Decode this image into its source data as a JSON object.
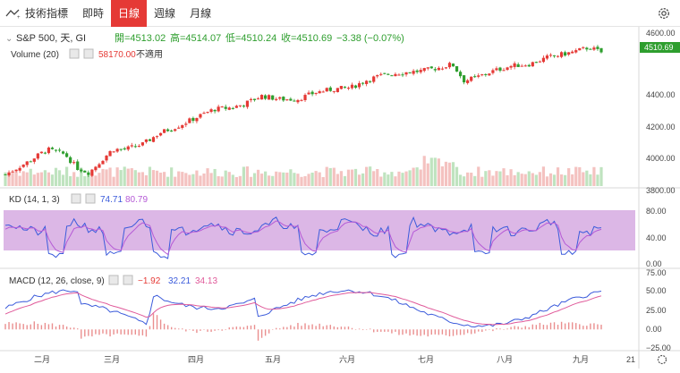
{
  "toolbar": {
    "indicators_label": "技術指標",
    "tabs": [
      {
        "label": "即時",
        "active": false
      },
      {
        "label": "日線",
        "active": true
      },
      {
        "label": "週線",
        "active": false
      },
      {
        "label": "月線",
        "active": false
      }
    ]
  },
  "main_legend": {
    "symbol": "S&P 500, 天, GI",
    "open_label": "開=4513.02",
    "high_label": "高=4514.07",
    "low_label": "低=4510.24",
    "close_label": "收=4510.69",
    "change": "−3.38 (−0.07%)",
    "last_price": "4510.69"
  },
  "volume_legend": {
    "name": "Volume (20)",
    "value": "58170.00",
    "note": "不適用"
  },
  "kd_legend": {
    "name": "KD (14, 1, 3)",
    "k": "74.71",
    "d": "80.79"
  },
  "macd_legend": {
    "name": "MACD (12, 26, close, 9)",
    "hist": "−1.92",
    "macd": "32.21",
    "signal": "34.13"
  },
  "price_axis": [
    "4600.00",
    "4400.00",
    "4200.00",
    "4000.00",
    "3800.00"
  ],
  "kd_axis": [
    "80.00",
    "40.00",
    "0.00"
  ],
  "macd_axis": [
    "75.00",
    "50.00",
    "25.00",
    "0.00",
    "−25.00"
  ],
  "months": [
    "二月",
    "三月",
    "四月",
    "五月",
    "六月",
    "七月",
    "八月",
    "九月"
  ],
  "year_end_label": "21",
  "colors": {
    "up": "#e53935",
    "down": "#2e9e2e",
    "kd_k": "#3b5bdb",
    "kd_d": "#b55ad6",
    "band": "#dcb7e6",
    "macd_line": "#3b5bdb",
    "signal_line": "#e05a9a"
  },
  "chart_data": {
    "type": "candlestick",
    "x_ticks": [
      "二月",
      "三月",
      "四月",
      "五月",
      "六月",
      "七月",
      "八月",
      "九月",
      "21"
    ],
    "price_range": [
      3700,
      4620
    ],
    "close_path": [
      [
        0,
        3780
      ],
      [
        8,
        3860
      ],
      [
        14,
        3930
      ],
      [
        20,
        3900
      ],
      [
        24,
        3820
      ],
      [
        28,
        3790
      ],
      [
        32,
        3860
      ],
      [
        36,
        3930
      ],
      [
        40,
        3930
      ],
      [
        46,
        3960
      ],
      [
        52,
        4030
      ],
      [
        58,
        4070
      ],
      [
        64,
        4120
      ],
      [
        70,
        4170
      ],
      [
        76,
        4180
      ],
      [
        80,
        4200
      ],
      [
        86,
        4250
      ],
      [
        92,
        4230
      ],
      [
        98,
        4230
      ],
      [
        104,
        4270
      ],
      [
        110,
        4290
      ],
      [
        116,
        4300
      ],
      [
        122,
        4350
      ],
      [
        128,
        4380
      ],
      [
        134,
        4390
      ],
      [
        140,
        4400
      ],
      [
        146,
        4420
      ],
      [
        150,
        4440
      ],
      [
        154,
        4340
      ],
      [
        158,
        4360
      ],
      [
        164,
        4400
      ],
      [
        170,
        4430
      ],
      [
        176,
        4440
      ],
      [
        182,
        4480
      ],
      [
        190,
        4510
      ],
      [
        196,
        4540
      ],
      [
        200,
        4510
      ]
    ],
    "kd_band": [
      20,
      80
    ],
    "macd_range": [
      -30,
      80
    ]
  }
}
